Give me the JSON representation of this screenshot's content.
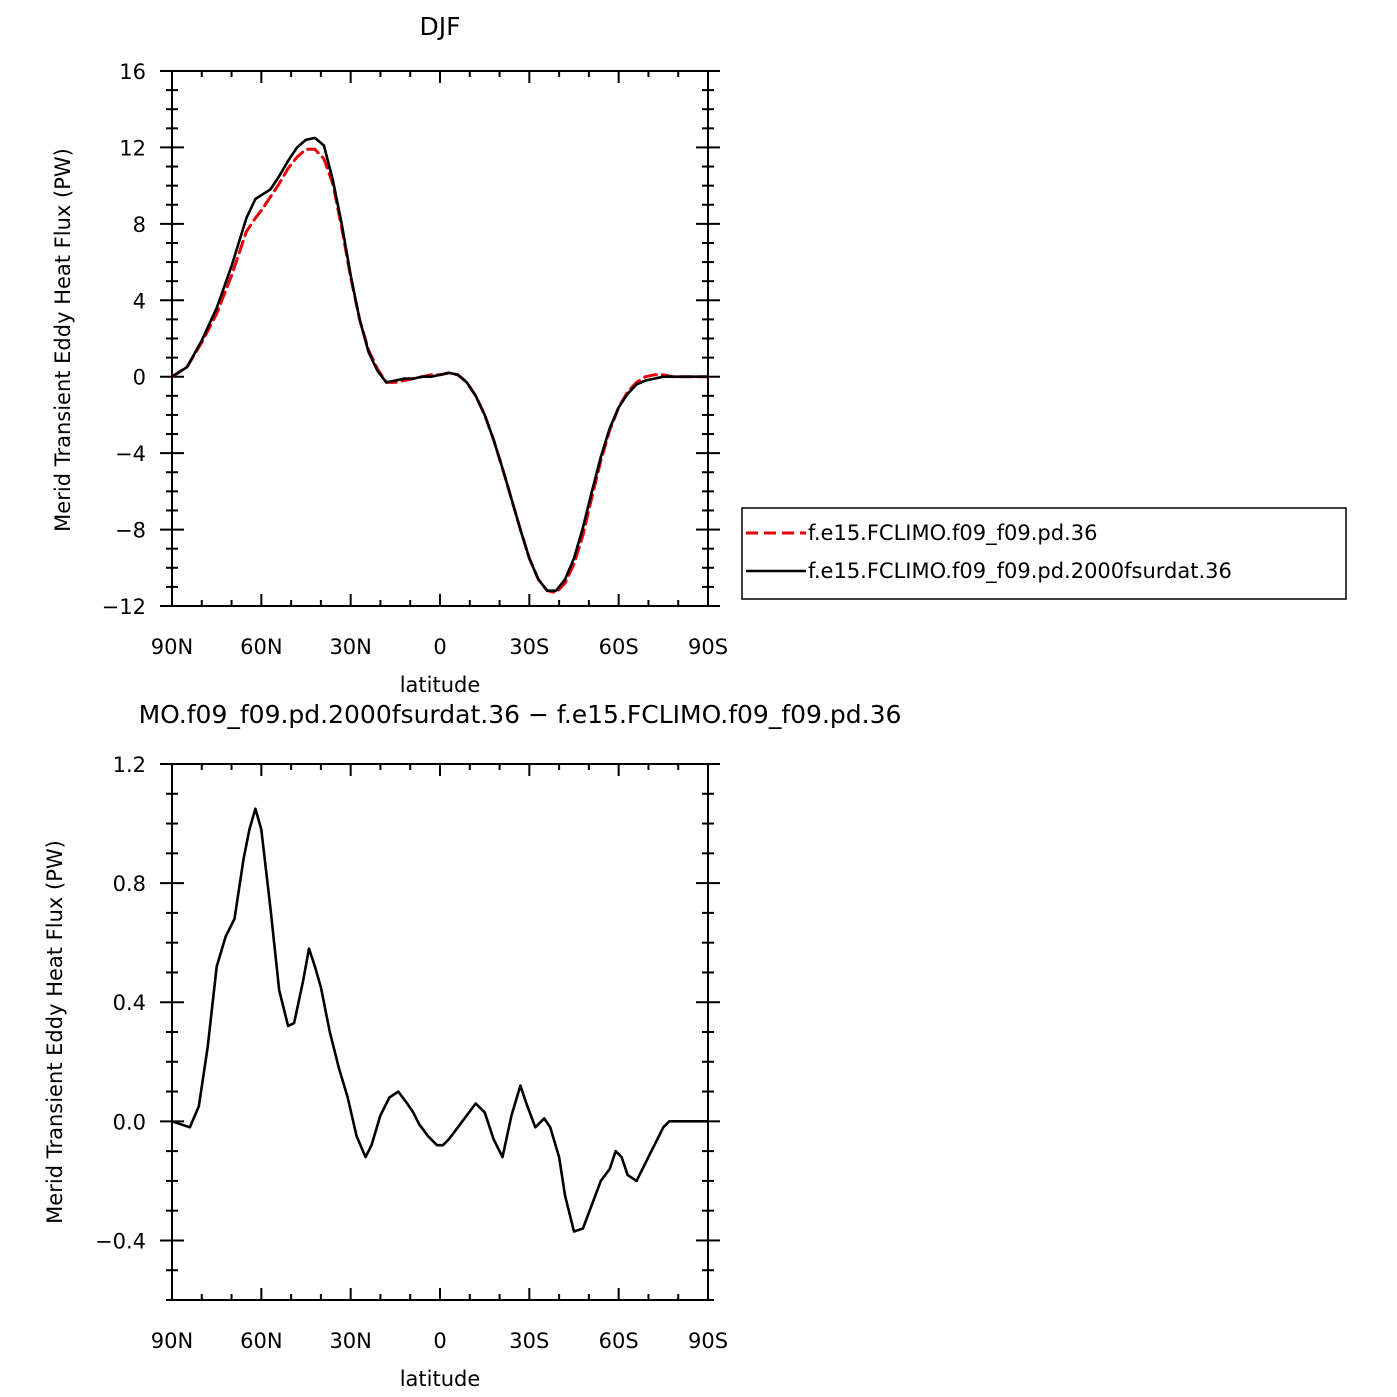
{
  "chart_data": [
    {
      "type": "line",
      "title": "DJF",
      "xlabel": "latitude",
      "ylabel": "Merid Transient Eddy Heat Flux (PW)",
      "x_tick_labels": [
        "90N",
        "60N",
        "30N",
        "0",
        "30S",
        "60S",
        "90S"
      ],
      "x_tick_values": [
        90,
        60,
        30,
        0,
        -30,
        -60,
        -90
      ],
      "xlim": [
        90,
        -90
      ],
      "y_tick_labels": [
        "16",
        "12",
        "8",
        "4",
        "0",
        "−4",
        "−8",
        "−12"
      ],
      "y_tick_values": [
        16,
        12,
        8,
        4,
        0,
        -4,
        -8,
        -12
      ],
      "ylim": [
        -12,
        16
      ],
      "grid": false,
      "legend": "right, outside plot",
      "x": [
        90,
        85,
        80,
        75,
        70,
        65,
        62,
        60,
        57,
        54,
        51,
        48,
        45,
        42,
        39,
        36,
        33,
        30,
        27,
        24,
        21,
        18,
        15,
        12,
        9,
        6,
        3,
        0,
        -3,
        -6,
        -9,
        -12,
        -15,
        -18,
        -21,
        -24,
        -27,
        -30,
        -33,
        -36,
        -39,
        -42,
        -45,
        -48,
        -51,
        -54,
        -57,
        -60,
        -63,
        -66,
        -69,
        -72,
        -75,
        -78,
        -81,
        -84,
        -87,
        -90
      ],
      "series": [
        {
          "name": "f.e15.FCLIMO.f09_f09.pd.36",
          "color": "#e8000b",
          "dash": "dashed",
          "values": [
            0,
            0.5,
            1.8,
            3.3,
            5.3,
            7.6,
            8.3,
            8.7,
            9.4,
            10.1,
            10.9,
            11.5,
            11.9,
            11.9,
            11.4,
            10.1,
            7.8,
            5.2,
            3.0,
            1.4,
            0.4,
            -0.3,
            -0.3,
            -0.2,
            -0.1,
            0.0,
            0.1,
            0.1,
            0.2,
            0.1,
            -0.3,
            -1.0,
            -2.0,
            -3.3,
            -4.8,
            -6.4,
            -8.0,
            -9.5,
            -10.6,
            -11.2,
            -11.3,
            -10.8,
            -9.8,
            -8.3,
            -6.3,
            -4.4,
            -2.8,
            -1.6,
            -0.8,
            -0.3,
            0.0,
            0.1,
            0.1,
            0.0,
            0.0,
            0.0,
            0.0,
            0.0
          ]
        },
        {
          "name": "f.e15.FCLIMO.f09_f09.pd.2000fsurdat.36",
          "color": "#000000",
          "dash": "solid",
          "values": [
            0,
            0.5,
            1.9,
            3.6,
            5.8,
            8.3,
            9.3,
            9.5,
            9.8,
            10.5,
            11.3,
            12.0,
            12.4,
            12.5,
            12.1,
            10.3,
            8.0,
            5.3,
            3.0,
            1.3,
            0.3,
            -0.3,
            -0.2,
            -0.1,
            -0.1,
            0.0,
            0.0,
            0.1,
            0.2,
            0.1,
            -0.3,
            -1.0,
            -2.0,
            -3.3,
            -4.8,
            -6.4,
            -8.0,
            -9.5,
            -10.6,
            -11.2,
            -11.2,
            -10.6,
            -9.5,
            -7.9,
            -6.0,
            -4.2,
            -2.7,
            -1.6,
            -0.9,
            -0.4,
            -0.2,
            -0.1,
            0.0,
            0.0,
            0.0,
            0.0,
            0.0,
            0.0
          ]
        }
      ]
    },
    {
      "type": "line",
      "title": "MO.f09_f09.pd.2000fsurdat.36 − f.e15.FCLIMO.f09_f09.pd.36",
      "xlabel": "latitude",
      "ylabel": "Merid Transient Eddy Heat Flux (PW)",
      "x_tick_labels": [
        "90N",
        "60N",
        "30N",
        "0",
        "30S",
        "60S",
        "90S"
      ],
      "x_tick_values": [
        90,
        60,
        30,
        0,
        -30,
        -60,
        -90
      ],
      "xlim": [
        90,
        -90
      ],
      "y_tick_labels": [
        "1.2",
        "0.8",
        "0.4",
        "0.0",
        "−0.4"
      ],
      "y_tick_values": [
        1.2,
        0.8,
        0.4,
        0.0,
        -0.4
      ],
      "ylim": [
        -0.6,
        1.2
      ],
      "grid": false,
      "x": [
        90,
        87,
        84,
        81,
        78,
        75,
        72,
        69,
        66,
        64,
        62,
        60,
        57,
        54,
        51,
        49,
        46,
        44,
        42,
        40,
        37,
        34,
        31,
        28,
        25,
        23,
        20,
        17,
        14,
        11,
        9,
        7,
        4,
        1,
        -1,
        -3,
        -6,
        -9,
        -12,
        -15,
        -18,
        -21,
        -24,
        -27,
        -29,
        -32,
        -35,
        -37,
        -40,
        -42,
        -45,
        -48,
        -51,
        -54,
        -57,
        -59,
        -61,
        -63,
        -66,
        -68,
        -71,
        -73,
        -75,
        -77,
        -79,
        -81,
        -84,
        -87,
        -90
      ],
      "series": [
        {
          "name": "",
          "color": "#000000",
          "dash": "solid",
          "values": [
            0.0,
            -0.01,
            -0.02,
            0.05,
            0.25,
            0.52,
            0.62,
            0.68,
            0.88,
            0.98,
            1.05,
            0.98,
            0.72,
            0.44,
            0.32,
            0.33,
            0.47,
            0.58,
            0.52,
            0.45,
            0.3,
            0.18,
            0.08,
            -0.05,
            -0.12,
            -0.08,
            0.02,
            0.08,
            0.1,
            0.06,
            0.03,
            -0.01,
            -0.05,
            -0.08,
            -0.08,
            -0.06,
            -0.02,
            0.02,
            0.06,
            0.03,
            -0.06,
            -0.12,
            0.02,
            0.12,
            0.06,
            -0.02,
            0.01,
            -0.02,
            -0.12,
            -0.25,
            -0.37,
            -0.36,
            -0.28,
            -0.2,
            -0.16,
            -0.1,
            -0.12,
            -0.18,
            -0.2,
            -0.16,
            -0.1,
            -0.06,
            -0.02,
            0.0,
            0.0,
            0.0,
            0.0,
            0.0,
            0.0
          ]
        }
      ]
    }
  ]
}
